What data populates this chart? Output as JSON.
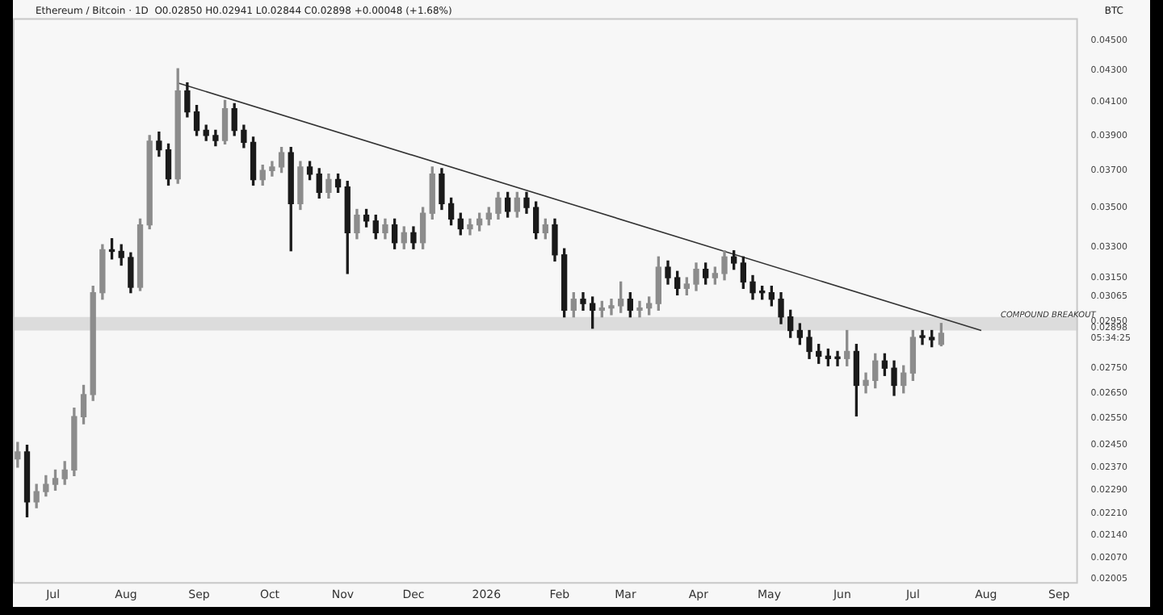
{
  "chart_data": {
    "type": "candlestick",
    "title": "Ethereum / Bitcoin · 1D",
    "subtitle": "O0.02850 H0.02941 L0.02844 C0.02898 +0.00048 (+1.68%)",
    "ylabel": "BTC",
    "colors": [
      "#8c8c8c",
      "#1a1a1a",
      "#8c8c8c",
      "#8c8c8c",
      "#8c8c8c",
      "#8c8c8c",
      "#8c8c8c",
      "#8c8c8c",
      "#8c8c8c",
      "#8c8c8c",
      "#1a1a1a",
      "#1a1a1a",
      "#1a1a1a",
      "#8c8c8c",
      "#8c8c8c",
      "#1a1a1a",
      "#1a1a1a",
      "#8c8c8c",
      "#1a1a1a",
      "#1a1a1a",
      "#1a1a1a",
      "#1a1a1a",
      "#8c8c8c",
      "#1a1a1a",
      "#1a1a1a",
      "#1a1a1a",
      "#8c8c8c",
      "#8c8c8c",
      "#8c8c8c",
      "#1a1a1a",
      "#8c8c8c",
      "#1a1a1a",
      "#1a1a1a",
      "#8c8c8c",
      "#1a1a1a",
      "#1a1a1a",
      "#8c8c8c",
      "#1a1a1a",
      "#1a1a1a",
      "#8c8c8c",
      "#1a1a1a",
      "#8c8c8c",
      "#1a1a1a",
      "#8c8c8c",
      "#8c8c8c",
      "#1a1a1a",
      "#1a1a1a",
      "#1a1a1a",
      "#8c8c8c",
      "#8c8c8c",
      "#8c8c8c",
      "#8c8c8c",
      "#1a1a1a",
      "#8c8c8c",
      "#1a1a1a",
      "#1a1a1a",
      "#8c8c8c",
      "#1a1a1a",
      "#1a1a1a",
      "#8c8c8c",
      "#1a1a1a",
      "#1a1a1a",
      "#8c8c8c",
      "#8c8c8c",
      "#8c8c8c",
      "#1a1a1a",
      "#8c8c8c",
      "#8c8c8c",
      "#8c8c8c",
      "#1a1a1a",
      "#1a1a1a",
      "#8c8c8c",
      "#8c8c8c",
      "#1a1a1a",
      "#8c8c8c",
      "#8c8c8c",
      "#1a1a1a",
      "#1a1a1a",
      "#1a1a1a",
      "#1a1a1a",
      "#1a1a1a",
      "#1a1a1a",
      "#1a1a1a",
      "#1a1a1a",
      "#1a1a1a",
      "#1a1a1a",
      "#1a1a1a",
      "#1a1a1a",
      "#8c8c8c",
      "#1a1a1a",
      "#8c8c8c",
      "#8c8c8c",
      "#1a1a1a",
      "#1a1a1a",
      "#8c8c8c",
      "#8c8c8c",
      "#1a1a1a",
      "#1a1a1a",
      "#8c8c8c"
    ],
    "log": "y",
    "grid": false,
    "legend": false,
    "x": [
      "2025-06-16",
      "2025-06-20",
      "2025-06-24",
      "2025-06-28",
      "2025-07-02",
      "2025-07-06",
      "2025-07-10",
      "2025-07-14",
      "2025-07-18",
      "2025-07-22",
      "2025-07-26",
      "2025-07-30",
      "2025-08-03",
      "2025-08-07",
      "2025-08-11",
      "2025-08-15",
      "2025-08-19",
      "2025-08-23",
      "2025-08-27",
      "2025-08-31",
      "2025-09-04",
      "2025-09-08",
      "2025-09-12",
      "2025-09-16",
      "2025-09-20",
      "2025-09-24",
      "2025-09-28",
      "2025-10-02",
      "2025-10-06",
      "2025-10-10",
      "2025-10-14",
      "2025-10-18",
      "2025-10-22",
      "2025-10-26",
      "2025-10-30",
      "2025-11-03",
      "2025-11-07",
      "2025-11-11",
      "2025-11-15",
      "2025-11-19",
      "2025-11-23",
      "2025-11-27",
      "2025-12-01",
      "2025-12-05",
      "2025-12-09",
      "2025-12-13",
      "2025-12-17",
      "2025-12-21",
      "2025-12-25",
      "2025-12-29",
      "2026-01-02",
      "2026-01-06",
      "2026-01-10",
      "2026-01-14",
      "2026-01-18",
      "2026-01-22",
      "2026-01-26",
      "2026-01-30",
      "2026-02-03",
      "2026-02-07",
      "2026-02-11",
      "2026-02-15",
      "2026-02-19",
      "2026-02-23",
      "2026-02-27",
      "2026-03-03",
      "2026-03-07",
      "2026-03-11",
      "2026-03-15",
      "2026-03-19",
      "2026-03-23",
      "2026-03-27",
      "2026-03-31",
      "2026-04-04",
      "2026-04-08",
      "2026-04-12",
      "2026-04-16",
      "2026-04-20",
      "2026-04-24",
      "2026-04-28",
      "2026-05-02",
      "2026-05-06",
      "2026-05-10",
      "2026-05-14",
      "2026-05-18",
      "2026-05-22",
      "2026-05-26",
      "2026-05-30",
      "2026-06-03",
      "2026-06-07",
      "2026-06-11",
      "2026-06-15",
      "2026-06-19",
      "2026-06-23",
      "2026-06-27",
      "2026-07-01",
      "2026-07-05",
      "2026-07-09",
      "2026-07-13"
    ],
    "ohlc": [
      [
        0.024,
        0.0246,
        0.0237,
        0.02425
      ],
      [
        0.02425,
        0.0245,
        0.022,
        0.0225
      ],
      [
        0.0225,
        0.0231,
        0.0223,
        0.02285
      ],
      [
        0.02285,
        0.0234,
        0.0227,
        0.0231
      ],
      [
        0.0231,
        0.0236,
        0.0229,
        0.0233
      ],
      [
        0.0233,
        0.0239,
        0.0231,
        0.0236
      ],
      [
        0.0236,
        0.0259,
        0.0234,
        0.02557
      ],
      [
        0.02557,
        0.0268,
        0.0253,
        0.02643
      ],
      [
        0.02643,
        0.0311,
        0.0262,
        0.0308
      ],
      [
        0.0308,
        0.0331,
        0.0305,
        0.03285
      ],
      [
        0.03285,
        0.0334,
        0.0324,
        0.03277
      ],
      [
        0.03277,
        0.0331,
        0.0321,
        0.03247
      ],
      [
        0.03247,
        0.0327,
        0.0308,
        0.03105
      ],
      [
        0.03105,
        0.0344,
        0.0309,
        0.0341
      ],
      [
        0.0341,
        0.039,
        0.0339,
        0.03867
      ],
      [
        0.03867,
        0.0392,
        0.0378,
        0.03817
      ],
      [
        0.03817,
        0.0385,
        0.0362,
        0.03654
      ],
      [
        0.03654,
        0.0431,
        0.0363,
        0.0417
      ],
      [
        0.0417,
        0.0422,
        0.0401,
        0.0404
      ],
      [
        0.0404,
        0.0408,
        0.039,
        0.0393
      ],
      [
        0.0393,
        0.0396,
        0.0387,
        0.039
      ],
      [
        0.039,
        0.0393,
        0.0384,
        0.0387
      ],
      [
        0.0387,
        0.0411,
        0.0385,
        0.0406
      ],
      [
        0.0406,
        0.0409,
        0.039,
        0.0393
      ],
      [
        0.0393,
        0.0396,
        0.0383,
        0.0386
      ],
      [
        0.0386,
        0.0389,
        0.0362,
        0.0365
      ],
      [
        0.0365,
        0.0373,
        0.0362,
        0.037
      ],
      [
        0.037,
        0.0375,
        0.0367,
        0.0372
      ],
      [
        0.0372,
        0.0383,
        0.0369,
        0.038
      ],
      [
        0.038,
        0.0383,
        0.0328,
        0.0352
      ],
      [
        0.0352,
        0.0375,
        0.0349,
        0.0372
      ],
      [
        0.0372,
        0.0375,
        0.0365,
        0.0368
      ],
      [
        0.0368,
        0.0371,
        0.0355,
        0.0358
      ],
      [
        0.0358,
        0.0368,
        0.0355,
        0.0365
      ],
      [
        0.0365,
        0.0368,
        0.0358,
        0.0361
      ],
      [
        0.0361,
        0.0364,
        0.0317,
        0.0337
      ],
      [
        0.0337,
        0.0349,
        0.0334,
        0.0346
      ],
      [
        0.0346,
        0.0349,
        0.034,
        0.0343
      ],
      [
        0.0343,
        0.0346,
        0.0334,
        0.0337
      ],
      [
        0.0337,
        0.0344,
        0.0334,
        0.0341
      ],
      [
        0.0341,
        0.0344,
        0.0329,
        0.0332
      ],
      [
        0.0332,
        0.034,
        0.0329,
        0.0337
      ],
      [
        0.0337,
        0.034,
        0.0329,
        0.0332
      ],
      [
        0.0332,
        0.035,
        0.0329,
        0.0347
      ],
      [
        0.0347,
        0.0372,
        0.0344,
        0.0368
      ],
      [
        0.0368,
        0.0371,
        0.0349,
        0.0352
      ],
      [
        0.0352,
        0.0355,
        0.0341,
        0.0344
      ],
      [
        0.0344,
        0.0347,
        0.0336,
        0.0339
      ],
      [
        0.0339,
        0.0344,
        0.0336,
        0.0341
      ],
      [
        0.0341,
        0.0347,
        0.0338,
        0.0344
      ],
      [
        0.0344,
        0.035,
        0.0341,
        0.0347
      ],
      [
        0.0347,
        0.0358,
        0.0344,
        0.0355
      ],
      [
        0.0355,
        0.0358,
        0.0345,
        0.0348
      ],
      [
        0.0348,
        0.0358,
        0.0345,
        0.0355
      ],
      [
        0.0355,
        0.0358,
        0.0347,
        0.035
      ],
      [
        0.035,
        0.0353,
        0.0334,
        0.0337
      ],
      [
        0.0337,
        0.0344,
        0.0334,
        0.0341
      ],
      [
        0.0341,
        0.0344,
        0.0323,
        0.0326
      ],
      [
        0.0326,
        0.0329,
        0.0297,
        0.03
      ],
      [
        0.03,
        0.0308,
        0.0297,
        0.0305
      ],
      [
        0.0305,
        0.0308,
        0.03,
        0.0303
      ],
      [
        0.0303,
        0.0306,
        0.0292,
        0.03
      ],
      [
        0.03,
        0.0304,
        0.0297,
        0.0301
      ],
      [
        0.0301,
        0.0305,
        0.0298,
        0.0302
      ],
      [
        0.0302,
        0.0313,
        0.0299,
        0.0305
      ],
      [
        0.0305,
        0.0308,
        0.0297,
        0.03
      ],
      [
        0.03,
        0.0304,
        0.0297,
        0.0301
      ],
      [
        0.0301,
        0.0306,
        0.0298,
        0.0303
      ],
      [
        0.0303,
        0.0325,
        0.03,
        0.032
      ],
      [
        0.032,
        0.0323,
        0.0312,
        0.0315
      ],
      [
        0.0315,
        0.0318,
        0.0307,
        0.031
      ],
      [
        0.031,
        0.0315,
        0.0307,
        0.0312
      ],
      [
        0.0312,
        0.0322,
        0.0309,
        0.0319
      ],
      [
        0.0319,
        0.0322,
        0.0312,
        0.0315
      ],
      [
        0.0315,
        0.032,
        0.0312,
        0.0317
      ],
      [
        0.0317,
        0.0328,
        0.0314,
        0.0325
      ],
      [
        0.0325,
        0.0328,
        0.0319,
        0.0322
      ],
      [
        0.0322,
        0.0325,
        0.031,
        0.0313
      ],
      [
        0.0313,
        0.0316,
        0.0305,
        0.0308
      ],
      [
        0.0308,
        0.0311,
        0.0305,
        0.0308
      ],
      [
        0.0308,
        0.0311,
        0.0302,
        0.0305
      ],
      [
        0.0305,
        0.0308,
        0.0294,
        0.0297
      ],
      [
        0.0297,
        0.03,
        0.0288,
        0.0291
      ],
      [
        0.0291,
        0.0294,
        0.0285,
        0.0288
      ],
      [
        0.0288,
        0.0291,
        0.0279,
        0.0282
      ],
      [
        0.0282,
        0.0285,
        0.0277,
        0.028
      ],
      [
        0.028,
        0.0283,
        0.0276,
        0.0279
      ],
      [
        0.0279,
        0.0282,
        0.0276,
        0.0279
      ],
      [
        0.0279,
        0.0291,
        0.0276,
        0.0282
      ],
      [
        0.0282,
        0.0285,
        0.0256,
        0.0268
      ],
      [
        0.0268,
        0.0273,
        0.0265,
        0.027
      ],
      [
        0.027,
        0.0281,
        0.0267,
        0.0278
      ],
      [
        0.0278,
        0.0281,
        0.0272,
        0.0275
      ],
      [
        0.0275,
        0.0278,
        0.0264,
        0.0268
      ],
      [
        0.0268,
        0.0276,
        0.0265,
        0.0273
      ],
      [
        0.0273,
        0.0291,
        0.027,
        0.0288
      ],
      [
        0.0288,
        0.0291,
        0.0285,
        0.0288
      ],
      [
        0.0288,
        0.0291,
        0.0284,
        0.0287
      ],
      [
        0.0285,
        0.02941,
        0.02844,
        0.02898
      ]
    ],
    "series": [
      {
        "type": "line",
        "color": "#333333",
        "x": [
          "2025-08-23",
          "2026-07-30"
        ],
        "values": [
          0.0422,
          0.0291
        ]
      }
    ],
    "bands": [
      {
        "axis": "y",
        "from": 0.0291,
        "to": 0.0297,
        "color": "#dcdcdc"
      }
    ],
    "annotations": [
      {
        "text": "COMPOUND BREAKOUT",
        "x": "2026-07-30",
        "y": 0.0296
      }
    ],
    "xlim": [
      "2025-06-14",
      "2026-09-09"
    ],
    "xticks": [
      {
        "value": "2025-07-01",
        "label": "Jul"
      },
      {
        "value": "2025-08-01",
        "label": "Aug"
      },
      {
        "value": "2025-09-01",
        "label": "Sep"
      },
      {
        "value": "2025-10-01",
        "label": "Oct"
      },
      {
        "value": "2025-11-01",
        "label": "Nov"
      },
      {
        "value": "2025-12-01",
        "label": "Dec"
      },
      {
        "value": "2026-01-01",
        "label": "2026"
      },
      {
        "value": "2026-02-01",
        "label": "Feb"
      },
      {
        "value": "2026-03-01",
        "label": "Mar"
      },
      {
        "value": "2026-04-01",
        "label": "Apr"
      },
      {
        "value": "2026-05-01",
        "label": "May"
      },
      {
        "value": "2026-06-01",
        "label": "Jun"
      },
      {
        "value": "2026-07-01",
        "label": "Jul"
      },
      {
        "value": "2026-08-01",
        "label": "Aug"
      },
      {
        "value": "2026-09-01",
        "label": "Sep"
      }
    ],
    "ylim": [
      0.0199,
      0.0465
    ],
    "yticks": [
      {
        "value": 0.02005,
        "label": "0.02005"
      },
      {
        "value": 0.0207,
        "label": "0.02070"
      },
      {
        "value": 0.0214,
        "label": "0.02140"
      },
      {
        "value": 0.0221,
        "label": "0.02210"
      },
      {
        "value": 0.0229,
        "label": "0.02290"
      },
      {
        "value": 0.0237,
        "label": "0.02370"
      },
      {
        "value": 0.0245,
        "label": "0.02450"
      },
      {
        "value": 0.0255,
        "label": "0.02550"
      },
      {
        "value": 0.0265,
        "label": "0.02650"
      },
      {
        "value": 0.0275,
        "label": "0.02750"
      },
      {
        "value": 0.02898,
        "label": "0.02898 05:34:25"
      },
      {
        "value": 0.0295,
        "label": "0.02950"
      },
      {
        "value": 0.03065,
        "label": "0.03065"
      },
      {
        "value": 0.0315,
        "label": "0.03150"
      },
      {
        "value": 0.033,
        "label": "0.03300"
      },
      {
        "value": 0.035,
        "label": "0.03500"
      },
      {
        "value": 0.037,
        "label": "0.03700"
      },
      {
        "value": 0.039,
        "label": "0.03900"
      },
      {
        "value": 0.041,
        "label": "0.04100"
      },
      {
        "value": 0.043,
        "label": "0.04300"
      },
      {
        "value": 0.045,
        "label": "0.04500"
      }
    ]
  }
}
